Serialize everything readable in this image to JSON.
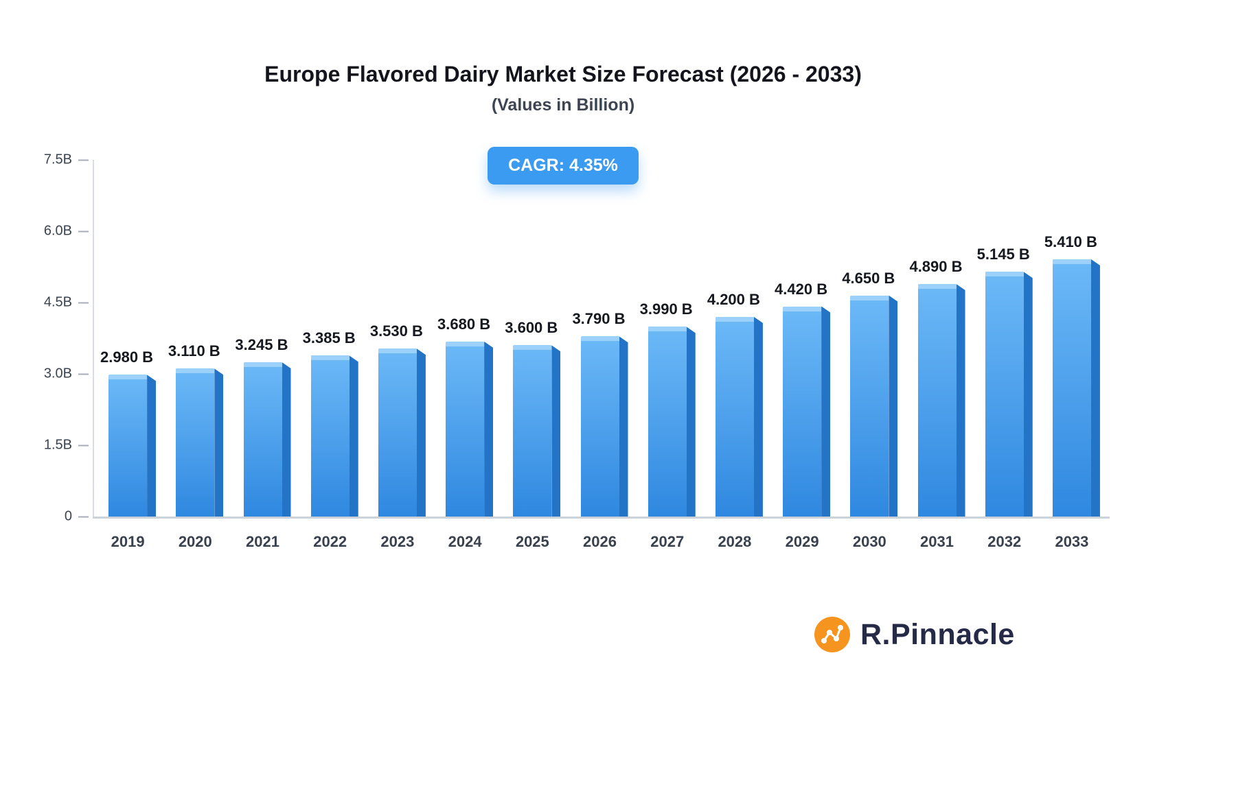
{
  "title": "Europe Flavored Dairy Market Size Forecast (2026 - 2033)",
  "subtitle": "(Values in Billion)",
  "cagr_badge": "CAGR: 4.35%",
  "brand": {
    "name": "R.Pinnacle"
  },
  "colors": {
    "badge": "#3b9bf0",
    "bar-light": "#6cb9f7",
    "bar-main": "#2f88e0",
    "bar-side": "#2373c6",
    "bar-topface": "#9ed2fb",
    "axis": "#a6adb8",
    "brand-navy": "#252a47",
    "brand-orange": "#f5941f"
  },
  "chart_data": {
    "type": "bar",
    "title": "Europe Flavored Dairy Market Size Forecast (2026 - 2033)",
    "subtitle": "(Values in Billion)",
    "xlabel": "",
    "ylabel": "",
    "ylim": [
      0,
      7.5
    ],
    "grid": false,
    "legend": false,
    "categories": [
      "2019",
      "2020",
      "2021",
      "2022",
      "2023",
      "2024",
      "2025",
      "2026",
      "2027",
      "2028",
      "2029",
      "2030",
      "2031",
      "2032",
      "2033"
    ],
    "values": [
      2.98,
      3.11,
      3.245,
      3.385,
      3.53,
      3.68,
      3.6,
      3.79,
      3.99,
      4.2,
      4.42,
      4.65,
      4.89,
      5.145,
      5.41
    ],
    "value_labels": [
      "2.980 B",
      "3.110 B",
      "3.245 B",
      "3.385 B",
      "3.530 B",
      "3.680 B",
      "3.600 B",
      "3.790 B",
      "3.990 B",
      "4.200 B",
      "4.420 B",
      "4.650 B",
      "4.890 B",
      "5.145 B",
      "5.410 B"
    ],
    "yticks": [
      {
        "value": 0,
        "label": "0"
      },
      {
        "value": 1.5,
        "label": "1.5B"
      },
      {
        "value": 3.0,
        "label": "3.0B"
      },
      {
        "value": 4.5,
        "label": "4.5B"
      },
      {
        "value": 6.0,
        "label": "6.0B"
      },
      {
        "value": 7.5,
        "label": "7.5B"
      }
    ],
    "annotation": "CAGR: 4.35%"
  }
}
